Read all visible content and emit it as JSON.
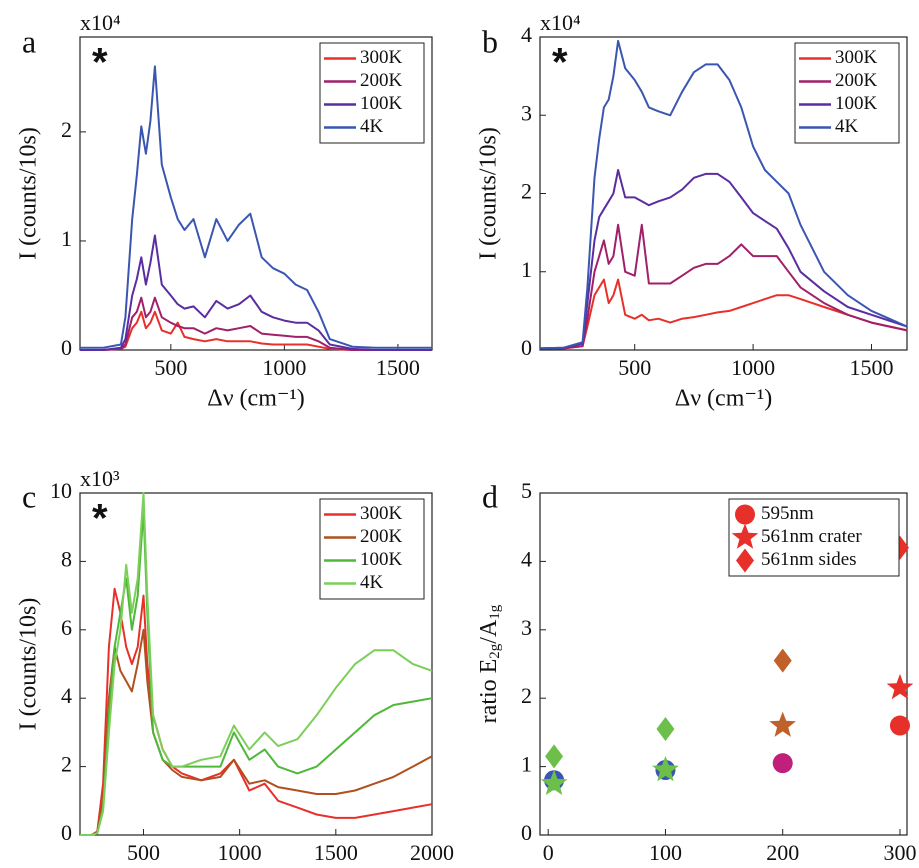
{
  "chart_data": [
    {
      "type": "line",
      "panel_label": "a",
      "marker": "*",
      "marker_color": "#111111",
      "exponent": "x10⁴",
      "xlabel": "Δν (cm⁻¹)",
      "ylabel": "I (counts/10s)",
      "legend": "upper right",
      "xlim": [
        100,
        1650
      ],
      "xticks": [
        500,
        1000,
        1500
      ],
      "ylim": [
        0,
        2.87
      ],
      "yticks": [
        0,
        1,
        2
      ],
      "x": [
        100,
        200,
        280,
        300,
        330,
        350,
        370,
        390,
        410,
        430,
        460,
        500,
        530,
        560,
        600,
        650,
        700,
        750,
        800,
        850,
        900,
        950,
        1000,
        1050,
        1100,
        1150,
        1200,
        1300,
        1400,
        1500,
        1650
      ],
      "series": [
        {
          "name": "300K",
          "color": "#e8302a",
          "values": [
            0,
            0,
            0.01,
            0.03,
            0.2,
            0.25,
            0.35,
            0.2,
            0.25,
            0.35,
            0.18,
            0.15,
            0.25,
            0.12,
            0.1,
            0.08,
            0.1,
            0.08,
            0.08,
            0.08,
            0.06,
            0.05,
            0.05,
            0.05,
            0.05,
            0.03,
            0.01,
            0,
            0,
            0,
            0
          ]
        },
        {
          "name": "200K",
          "color": "#a0206a",
          "values": [
            0,
            0,
            0.01,
            0.05,
            0.3,
            0.35,
            0.48,
            0.3,
            0.35,
            0.48,
            0.3,
            0.25,
            0.22,
            0.2,
            0.2,
            0.15,
            0.2,
            0.18,
            0.2,
            0.22,
            0.15,
            0.14,
            0.13,
            0.12,
            0.12,
            0.08,
            0.02,
            0,
            0,
            0,
            0
          ]
        },
        {
          "name": "100K",
          "color": "#5a2da0",
          "values": [
            0,
            0,
            0.02,
            0.1,
            0.5,
            0.65,
            0.85,
            0.6,
            0.8,
            1.05,
            0.6,
            0.5,
            0.42,
            0.38,
            0.4,
            0.3,
            0.45,
            0.38,
            0.42,
            0.5,
            0.35,
            0.3,
            0.27,
            0.25,
            0.25,
            0.18,
            0.05,
            0.01,
            0,
            0,
            0
          ]
        },
        {
          "name": "4K",
          "color": "#3a56b0",
          "values": [
            0.02,
            0.02,
            0.05,
            0.3,
            1.2,
            1.6,
            2.05,
            1.8,
            2.1,
            2.6,
            1.7,
            1.4,
            1.2,
            1.1,
            1.2,
            0.85,
            1.2,
            1.0,
            1.15,
            1.25,
            0.85,
            0.75,
            0.7,
            0.6,
            0.55,
            0.35,
            0.1,
            0.03,
            0.02,
            0.02,
            0.02
          ]
        }
      ]
    },
    {
      "type": "line",
      "panel_label": "b",
      "marker": "*",
      "marker_color": "#e8302a",
      "exponent": "x10⁴",
      "xlabel": "Δν (cm⁻¹)",
      "ylabel": "I (counts/10s)",
      "legend": "upper right",
      "xlim": [
        100,
        1650
      ],
      "xticks": [
        500,
        1000,
        1500
      ],
      "ylim": [
        0,
        4
      ],
      "yticks": [
        0,
        1,
        2,
        3,
        4
      ],
      "x": [
        100,
        200,
        280,
        300,
        330,
        350,
        370,
        390,
        410,
        430,
        460,
        500,
        530,
        560,
        600,
        650,
        700,
        750,
        800,
        850,
        900,
        950,
        1000,
        1050,
        1100,
        1150,
        1200,
        1300,
        1400,
        1500,
        1650
      ],
      "series": [
        {
          "name": "300K",
          "color": "#e8302a",
          "values": [
            0.02,
            0.02,
            0.05,
            0.3,
            0.7,
            0.8,
            0.9,
            0.6,
            0.7,
            0.9,
            0.45,
            0.4,
            0.45,
            0.38,
            0.4,
            0.35,
            0.4,
            0.42,
            0.45,
            0.48,
            0.5,
            0.55,
            0.6,
            0.65,
            0.7,
            0.7,
            0.65,
            0.55,
            0.45,
            0.35,
            0.25
          ]
        },
        {
          "name": "200K",
          "color": "#a0206a",
          "values": [
            0.02,
            0.02,
            0.05,
            0.4,
            1.0,
            1.2,
            1.4,
            1.1,
            1.2,
            1.6,
            1.0,
            0.95,
            1.6,
            0.85,
            0.85,
            0.85,
            0.95,
            1.05,
            1.1,
            1.1,
            1.2,
            1.35,
            1.2,
            1.2,
            1.2,
            1.0,
            0.8,
            0.6,
            0.45,
            0.35,
            0.25
          ]
        },
        {
          "name": "100K",
          "color": "#5a2da0",
          "values": [
            0.02,
            0.03,
            0.08,
            0.6,
            1.4,
            1.7,
            1.8,
            1.9,
            2.0,
            2.3,
            1.95,
            1.95,
            1.9,
            1.85,
            1.9,
            1.95,
            2.05,
            2.2,
            2.25,
            2.25,
            2.15,
            1.95,
            1.75,
            1.65,
            1.55,
            1.3,
            1.0,
            0.75,
            0.55,
            0.45,
            0.3
          ]
        },
        {
          "name": "4K",
          "color": "#3a56b0",
          "values": [
            0.02,
            0.03,
            0.1,
            0.8,
            2.2,
            2.7,
            3.1,
            3.2,
            3.5,
            3.95,
            3.6,
            3.45,
            3.3,
            3.1,
            3.05,
            3.0,
            3.3,
            3.55,
            3.65,
            3.65,
            3.45,
            3.1,
            2.6,
            2.3,
            2.15,
            2.0,
            1.6,
            1.0,
            0.7,
            0.5,
            0.3
          ]
        }
      ]
    },
    {
      "type": "line",
      "panel_label": "c",
      "marker": "*",
      "marker_color": "#e8302a",
      "exponent": "x10³",
      "xlabel": "Δν (cm⁻¹)",
      "ylabel": "I (counts/10s)",
      "legend": "upper right",
      "xlim": [
        170,
        2000
      ],
      "xticks": [
        500,
        1000,
        1500,
        2000
      ],
      "ylim": [
        0,
        10
      ],
      "yticks": [
        0,
        2,
        4,
        6,
        8,
        10
      ],
      "x": [
        170,
        230,
        260,
        290,
        320,
        350,
        380,
        410,
        440,
        470,
        500,
        520,
        550,
        600,
        650,
        700,
        800,
        900,
        970,
        1050,
        1130,
        1200,
        1300,
        1400,
        1500,
        1600,
        1700,
        1800,
        1900,
        2000
      ],
      "series": [
        {
          "name": "300K",
          "color": "#e8302a",
          "values": [
            0,
            0,
            0.1,
            1.5,
            5.5,
            7.2,
            6.5,
            5.5,
            5.0,
            5.5,
            7.0,
            5.0,
            3.5,
            2.5,
            2.0,
            1.8,
            1.6,
            1.8,
            2.2,
            1.3,
            1.5,
            1.0,
            0.8,
            0.6,
            0.5,
            0.5,
            0.6,
            0.7,
            0.8,
            0.9
          ]
        },
        {
          "name": "200K",
          "color": "#b0501e",
          "values": [
            0,
            0,
            0.1,
            1.0,
            4.0,
            5.5,
            4.8,
            4.5,
            4.2,
            5.0,
            6.0,
            4.5,
            3.0,
            2.2,
            1.9,
            1.7,
            1.6,
            1.7,
            2.2,
            1.5,
            1.6,
            1.4,
            1.3,
            1.2,
            1.2,
            1.3,
            1.5,
            1.7,
            2.0,
            2.3
          ]
        },
        {
          "name": "100K",
          "color": "#4fb83a",
          "values": [
            0,
            0,
            0.05,
            0.8,
            3.5,
            5.5,
            6.5,
            7.5,
            6.0,
            7.0,
            9.5,
            6.5,
            3.0,
            2.2,
            2.0,
            2.0,
            2.0,
            2.0,
            3.0,
            2.2,
            2.5,
            2.0,
            1.8,
            2.0,
            2.5,
            3.0,
            3.5,
            3.8,
            3.9,
            4.0
          ]
        },
        {
          "name": "4K",
          "color": "#7ccf5a",
          "values": [
            0,
            0,
            0.05,
            0.7,
            3.0,
            5.0,
            6.0,
            7.9,
            6.5,
            7.5,
            10,
            7.0,
            3.5,
            2.5,
            2.0,
            2.0,
            2.2,
            2.3,
            3.2,
            2.5,
            3.0,
            2.6,
            2.8,
            3.5,
            4.3,
            5.0,
            5.4,
            5.4,
            5.0,
            4.8
          ]
        }
      ]
    },
    {
      "type": "scatter",
      "panel_label": "d",
      "xlabel": "temperature (K)",
      "ylabel_parts": [
        "ratio E",
        "2g",
        "/A",
        "1g"
      ],
      "legend": "upper right",
      "xlim": [
        -7,
        306
      ],
      "xticks": [
        0,
        100,
        200,
        300
      ],
      "ylim": [
        0,
        5
      ],
      "yticks": [
        0,
        1,
        2,
        3,
        4,
        5
      ],
      "x": [
        5,
        100,
        200,
        300
      ],
      "series": [
        {
          "name": "595nm",
          "shape": "circle",
          "color": "#e8302a",
          "colors": [
            "#3a56b0",
            "#3a56b0",
            "#c0207a",
            "#e8302a"
          ],
          "values": [
            0.8,
            0.95,
            1.05,
            1.6
          ]
        },
        {
          "name": "561nm crater",
          "shape": "star",
          "color": "#e8302a",
          "colors": [
            "#6cc04a",
            "#6cc04a",
            "#c0602a",
            "#e8302a"
          ],
          "values": [
            0.75,
            0.95,
            1.6,
            2.15
          ]
        },
        {
          "name": "561nm sides",
          "shape": "diamond",
          "color": "#e8302a",
          "colors": [
            "#6cc04a",
            "#6cc04a",
            "#c0602a",
            "#e8302a"
          ],
          "values": [
            1.15,
            1.55,
            2.55,
            4.2
          ]
        }
      ]
    }
  ]
}
